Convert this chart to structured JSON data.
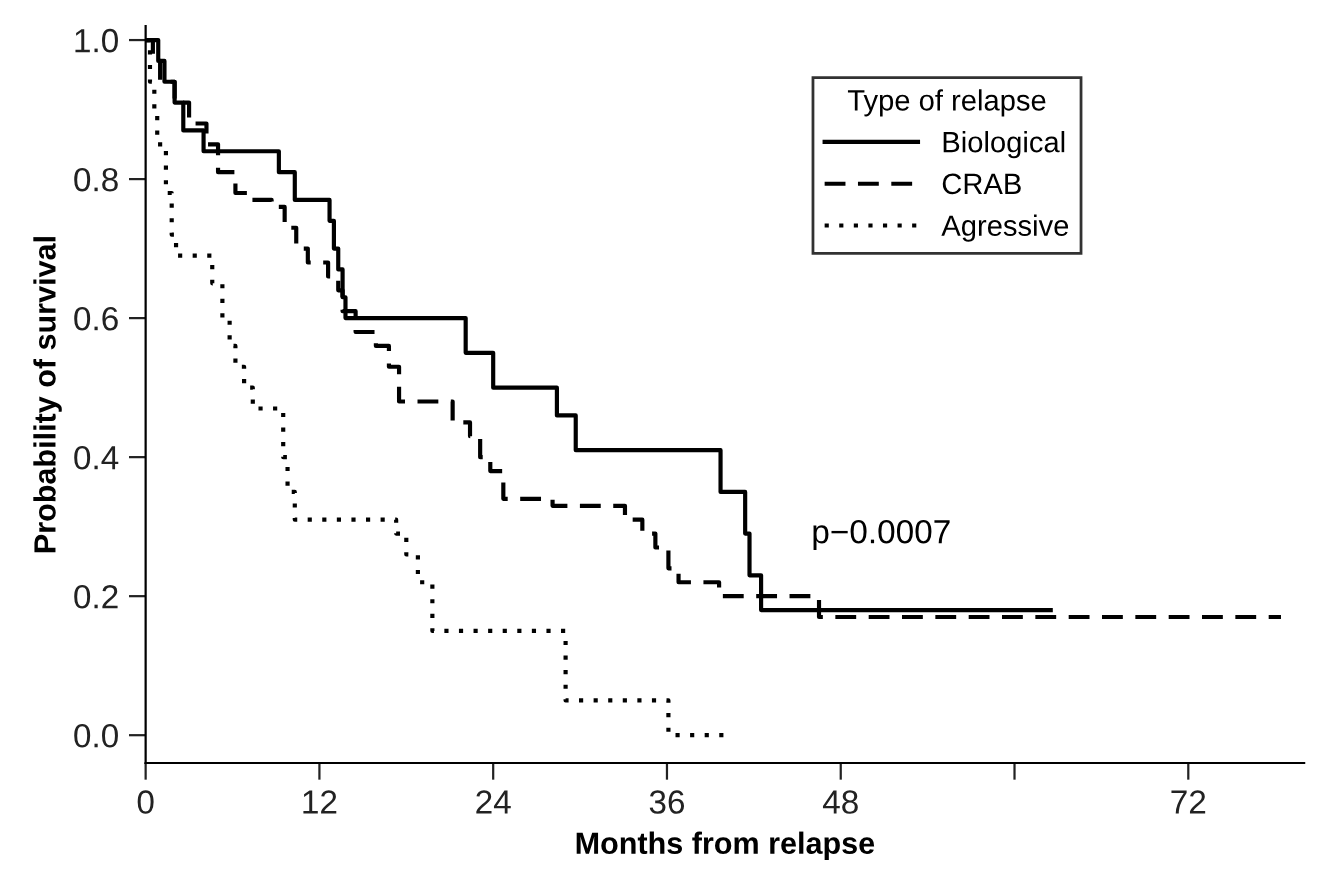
{
  "chart_data": {
    "type": "step",
    "xlabel": "Months from relapse",
    "ylabel": "Probability of survival",
    "legend_title": "Type of relapse",
    "legend": "top right",
    "grid": false,
    "xlim": [
      0,
      80
    ],
    "ylim": [
      -0.04,
      1.02
    ],
    "xticks": [
      0,
      12,
      24,
      36,
      48,
      {
        "value": 60,
        "label": null
      },
      72
    ],
    "yticks": [
      {
        "value": 0,
        "label": "0.0"
      },
      0.2,
      0.4,
      0.6,
      0.8,
      {
        "value": 1,
        "label": "1.0"
      }
    ],
    "annotations": [
      "p−0.0007"
    ],
    "series": [
      {
        "name": "Biological",
        "color": "#000000",
        "line_style": "solid",
        "x": [
          0,
          0.87,
          1.3,
          2.0,
          2.6,
          4.0,
          9.2,
          10.3,
          12.7,
          13.0,
          13.3,
          13.6,
          13.8,
          22.1,
          24.0,
          28.4,
          29.7,
          39.7,
          41.4,
          41.7,
          42.5,
          62.5
        ],
        "values": [
          1.0,
          0.97,
          0.94,
          0.91,
          0.87,
          0.84,
          0.81,
          0.77,
          0.74,
          0.7,
          0.67,
          0.63,
          0.6,
          0.55,
          0.5,
          0.46,
          0.41,
          0.35,
          0.29,
          0.23,
          0.18,
          0.18
        ]
      },
      {
        "name": "CRAB",
        "color": "#000000",
        "line_style": "dashed",
        "x": [
          0,
          0.5,
          1.0,
          2.0,
          3.0,
          4.2,
          5.0,
          6.2,
          7.3,
          8.7,
          9.6,
          10.4,
          11.2,
          12.6,
          13.3,
          13.6,
          14.5,
          15.9,
          16.8,
          17.5,
          21.2,
          22.4,
          23.1,
          23.8,
          24.7,
          28.1,
          33.1,
          34.3,
          35.2,
          36.1,
          36.8,
          39.6,
          46.5,
          78.4
        ],
        "values": [
          1.0,
          0.97,
          0.94,
          0.91,
          0.88,
          0.85,
          0.81,
          0.78,
          0.77,
          0.76,
          0.73,
          0.7,
          0.68,
          0.66,
          0.64,
          0.61,
          0.58,
          0.56,
          0.53,
          0.48,
          0.45,
          0.43,
          0.4,
          0.38,
          0.34,
          0.33,
          0.31,
          0.29,
          0.27,
          0.24,
          0.22,
          0.2,
          0.17,
          0.17
        ]
      },
      {
        "name": "Agressive",
        "color": "#000000",
        "line_style": "dotted",
        "x": [
          0,
          0.3,
          0.6,
          0.8,
          1.4,
          1.8,
          2.1,
          4.6,
          5.3,
          5.8,
          6.2,
          6.8,
          7.4,
          9.5,
          9.8,
          10.3,
          17.3,
          18.0,
          18.8,
          19.8,
          29.0,
          36.1,
          40.0,
          40.2
        ],
        "values": [
          1.0,
          0.94,
          0.9,
          0.85,
          0.78,
          0.72,
          0.69,
          0.65,
          0.6,
          0.56,
          0.53,
          0.5,
          0.47,
          0.4,
          0.35,
          0.31,
          0.29,
          0.26,
          0.22,
          0.15,
          0.05,
          0.0,
          0.0,
          0.0
        ]
      }
    ]
  }
}
